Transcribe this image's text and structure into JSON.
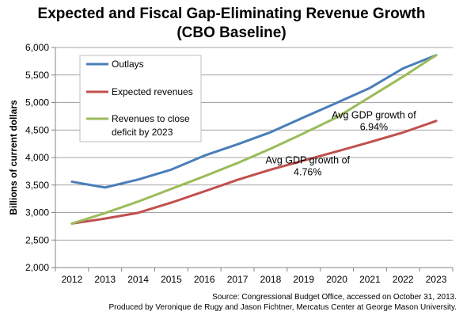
{
  "chart_data": {
    "type": "line",
    "title_lines": [
      "Expected and Fiscal Gap-Eliminating Revenue Growth",
      "(CBO Baseline)"
    ],
    "ylabel": "Billions of current dollars",
    "xlabel": "",
    "x": [
      "2012",
      "2013",
      "2014",
      "2015",
      "2016",
      "2017",
      "2018",
      "2019",
      "2020",
      "2021",
      "2022",
      "2023"
    ],
    "ylim": [
      2000,
      6000
    ],
    "yticks": [
      "2,000",
      "2,500",
      "3,000",
      "3,500",
      "4,000",
      "4,500",
      "5,000",
      "5,500",
      "6,000"
    ],
    "ytick_values": [
      2000,
      2500,
      3000,
      3500,
      4000,
      4500,
      5000,
      5500,
      6000
    ],
    "grid": "horizontal",
    "legend_position": "top-left",
    "series": [
      {
        "name": "Outlays",
        "color": "#4a7ebb",
        "values": [
          3560,
          3455,
          3600,
          3780,
          4035,
          4240,
          4460,
          4730,
          4995,
          5265,
          5620,
          5860
        ]
      },
      {
        "name": "Expected revenues",
        "color": "#c0504d",
        "values": [
          2800,
          2890,
          2995,
          3180,
          3385,
          3595,
          3780,
          3945,
          4110,
          4280,
          4455,
          4665
        ]
      },
      {
        "name": "Revenues to close deficit by 2023",
        "name_lines": [
          "Revenues to close",
          "deficit by 2023"
        ],
        "color": "#9bbb59",
        "values": [
          2800,
          2990,
          3200,
          3430,
          3660,
          3900,
          4160,
          4440,
          4730,
          5100,
          5470,
          5860
        ]
      }
    ],
    "annotations": [
      {
        "lines": [
          "Avg GDP growth of",
          "6.94%"
        ],
        "x": "2021",
        "y": 4600
      },
      {
        "lines": [
          "Avg GDP growth of",
          "4.76%"
        ],
        "x": "2019",
        "y": 3780
      }
    ]
  },
  "source": {
    "line1": "Source: Congressional Budget Office, accessed on October 31, 2013.",
    "line2": "Produced by Veronique de Rugy and Jason Fichtner, Mercatus Center at George Mason University."
  }
}
